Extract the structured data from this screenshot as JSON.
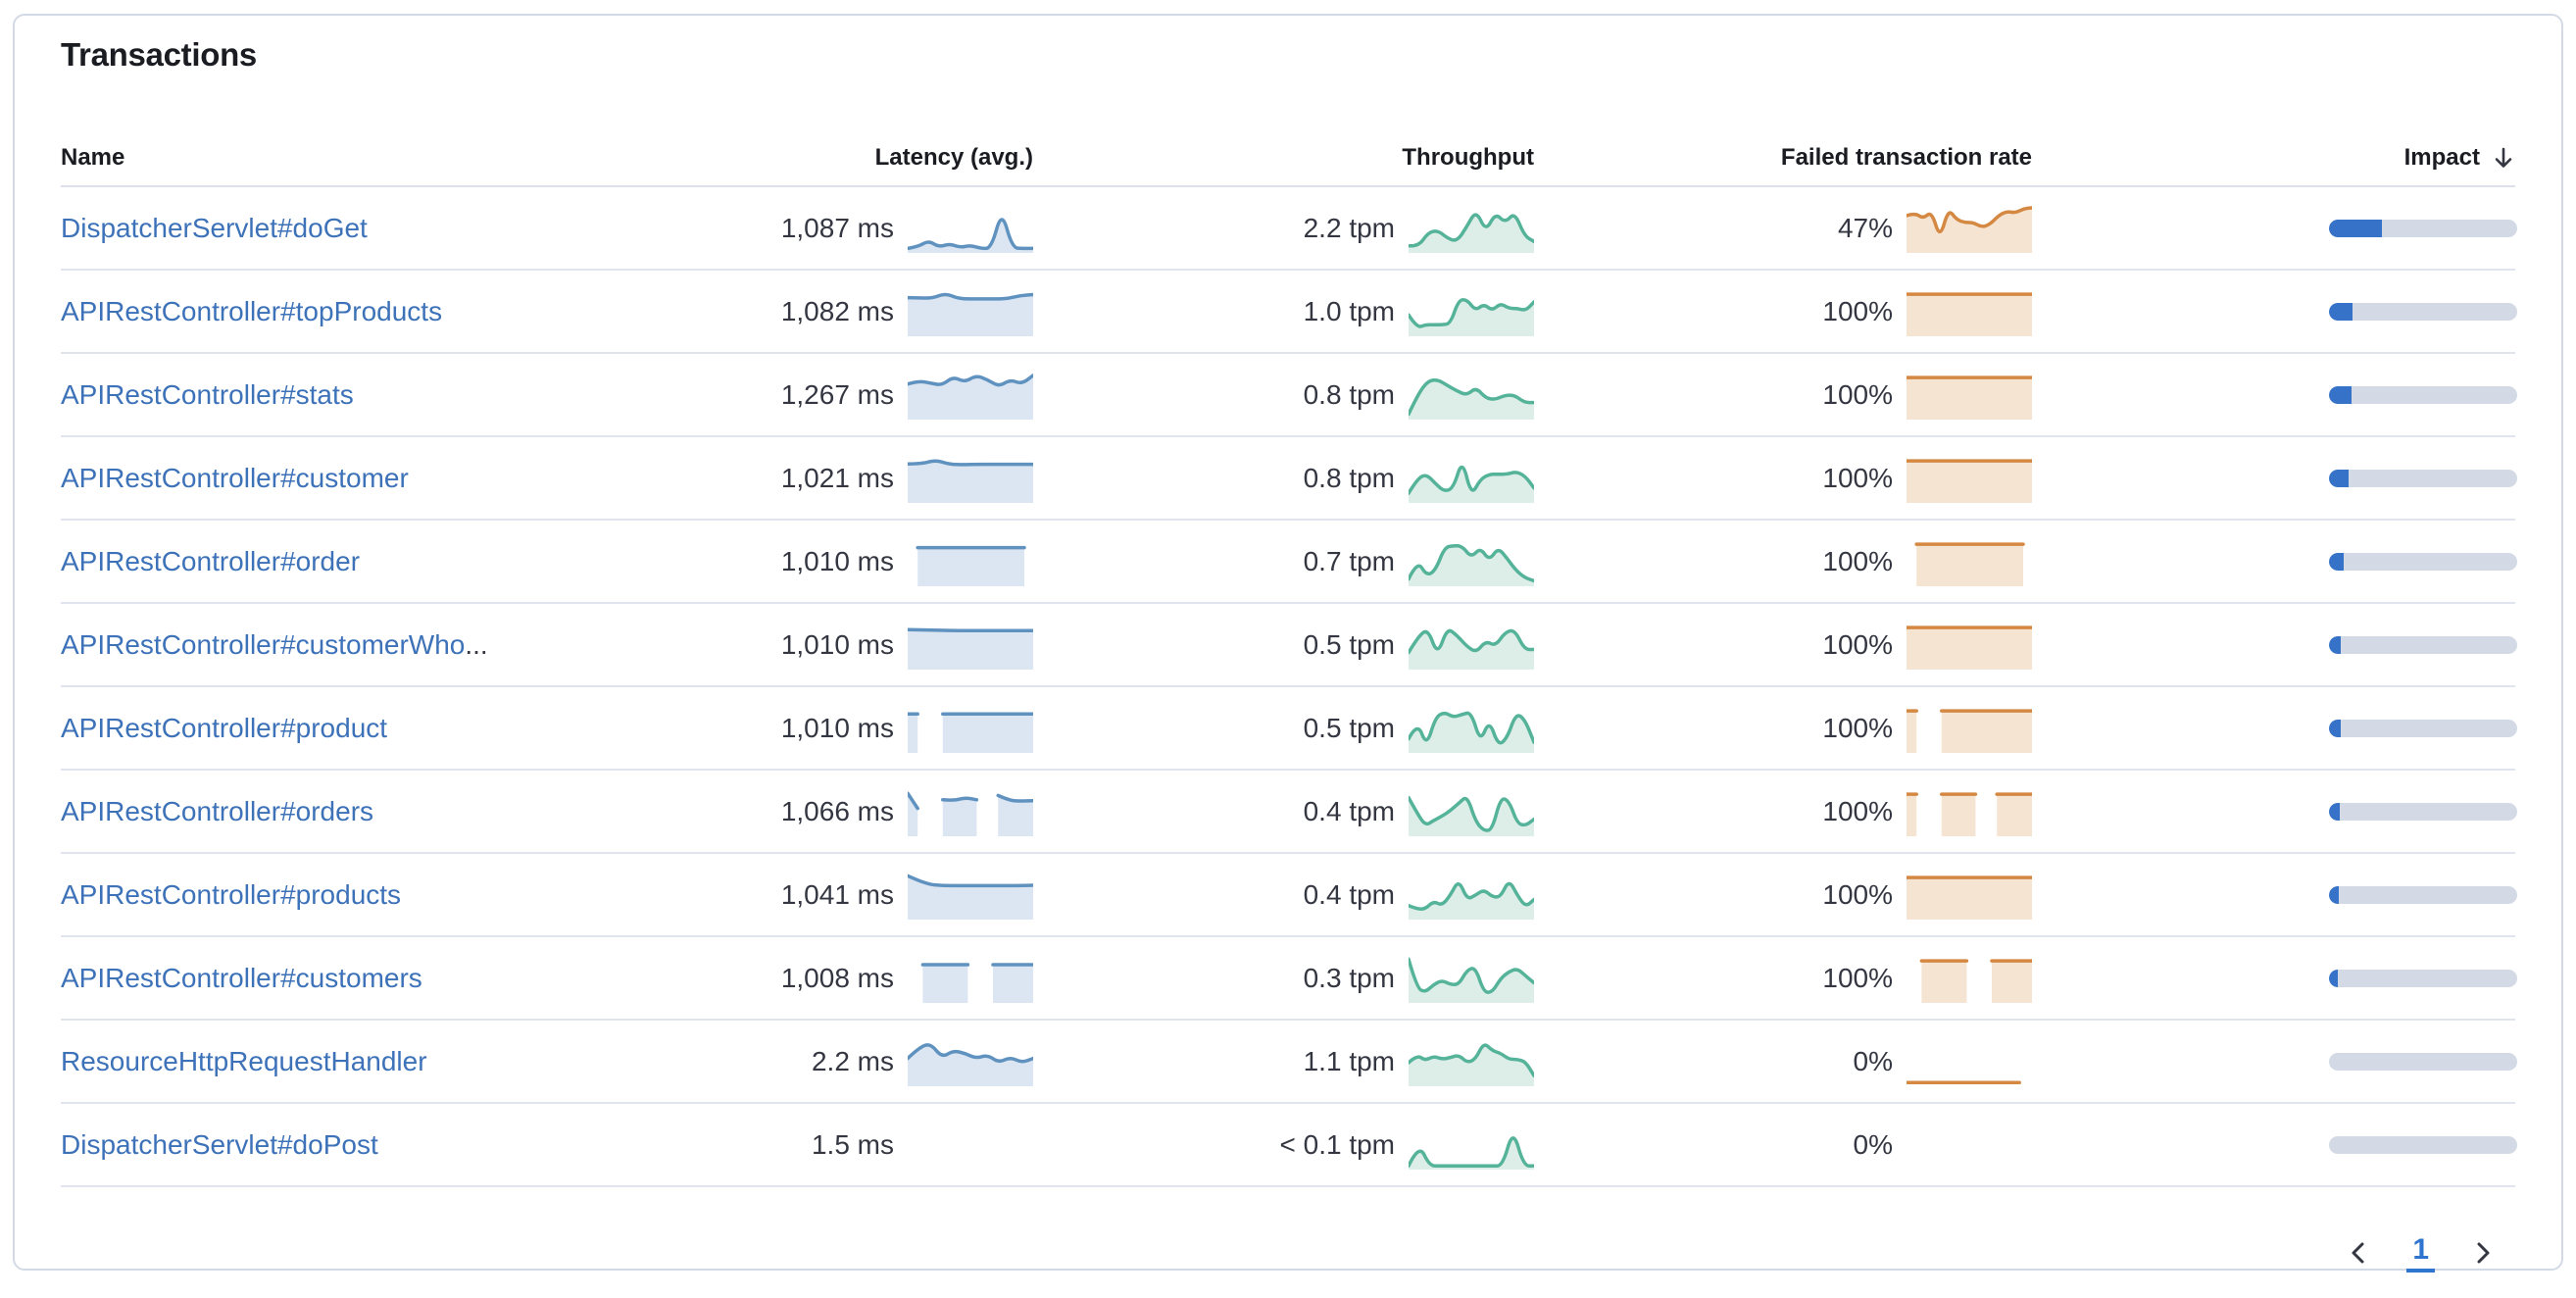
{
  "panel": {
    "title": "Transactions"
  },
  "table": {
    "columns": [
      {
        "key": "name",
        "label": "Name"
      },
      {
        "key": "latency",
        "label": "Latency (avg.)"
      },
      {
        "key": "throughput",
        "label": "Throughput"
      },
      {
        "key": "failed",
        "label": "Failed transaction rate"
      },
      {
        "key": "impact",
        "label": "Impact",
        "sorted": "desc"
      }
    ],
    "rows": [
      {
        "name": "DispatcherServlet#doGet",
        "suffix": "",
        "latency": "1,087 ms",
        "throughput": "2.2 tpm",
        "failed": "47%",
        "impact_pct": 28,
        "latency_spark": [
          {
            "x0": 0,
            "x1": 1,
            "v": [
              0.06,
              0.1,
              0.24,
              0.09,
              0.17,
              0.08,
              0.13,
              0.06,
              0.06,
              0.95,
              0.07,
              0.06,
              0.06
            ]
          }
        ],
        "throughput_spark": [
          {
            "x0": 0,
            "x1": 1,
            "v": [
              0.12,
              0.1,
              0.42,
              0.48,
              0.3,
              0.22,
              0.55,
              0.95,
              0.45,
              0.88,
              0.65,
              0.9,
              0.35,
              0.22
            ]
          }
        ],
        "failed_spark": [
          {
            "x0": 0,
            "x1": 1,
            "v": [
              0.82,
              0.88,
              0.75,
              0.92,
              0.28,
              0.98,
              0.72,
              0.66,
              0.66,
              0.55,
              0.62,
              0.82,
              0.92,
              0.88,
              0.98,
              1.0
            ]
          }
        ]
      },
      {
        "name": "APIRestController#topProducts",
        "suffix": "",
        "latency": "1,082 ms",
        "throughput": "1.0 tpm",
        "failed": "100%",
        "impact_pct": 12.5,
        "latency_spark": [
          {
            "x0": 0,
            "x1": 1,
            "v": [
              0.85,
              0.84,
              0.84,
              0.95,
              0.83,
              0.82,
              0.82,
              0.82,
              0.83,
              0.9,
              0.92
            ]
          }
        ],
        "throughput_spark": [
          {
            "x0": 0,
            "x1": 1,
            "v": [
              0.45,
              0.15,
              0.22,
              0.22,
              0.22,
              0.25,
              0.8,
              0.8,
              0.55,
              0.7,
              0.55,
              0.72,
              0.6,
              0.6,
              0.55,
              0.75
            ]
          }
        ],
        "failed_spark": [
          {
            "x0": 0,
            "x1": 1,
            "v": [
              0.93,
              0.93
            ]
          }
        ]
      },
      {
        "name": "APIRestController#stats",
        "suffix": "",
        "latency": "1,267 ms",
        "throughput": "0.8 tpm",
        "failed": "100%",
        "impact_pct": 12,
        "latency_spark": [
          {
            "x0": 0,
            "x1": 1,
            "v": [
              0.78,
              0.85,
              0.8,
              0.75,
              0.95,
              0.82,
              0.98,
              0.88,
              0.72,
              0.88,
              0.78,
              0.98
            ]
          }
        ],
        "throughput_spark": [
          {
            "x0": 0,
            "x1": 1,
            "v": [
              0.08,
              0.55,
              0.85,
              0.88,
              0.75,
              0.62,
              0.52,
              0.7,
              0.45,
              0.42,
              0.52,
              0.52,
              0.35,
              0.35
            ]
          }
        ],
        "failed_spark": [
          {
            "x0": 0,
            "x1": 1,
            "v": [
              0.93,
              0.93
            ]
          }
        ]
      },
      {
        "name": "APIRestController#customer",
        "suffix": "",
        "latency": "1,021 ms",
        "throughput": "0.8 tpm",
        "failed": "100%",
        "impact_pct": 10.5,
        "latency_spark": [
          {
            "x0": 0,
            "x1": 1,
            "v": [
              0.86,
              0.86,
              0.95,
              0.85,
              0.84,
              0.85,
              0.85,
              0.85,
              0.85,
              0.85
            ]
          }
        ],
        "throughput_spark": [
          {
            "x0": 0,
            "x1": 1,
            "v": [
              0.18,
              0.52,
              0.62,
              0.4,
              0.22,
              0.3,
              0.97,
              0.12,
              0.5,
              0.62,
              0.62,
              0.62,
              0.68,
              0.58,
              0.3
            ]
          }
        ],
        "failed_spark": [
          {
            "x0": 0,
            "x1": 1,
            "v": [
              0.93,
              0.93
            ]
          }
        ]
      },
      {
        "name": "APIRestController#order",
        "suffix": "",
        "latency": "1,010 ms",
        "throughput": "0.7 tpm",
        "failed": "100%",
        "impact_pct": 8,
        "latency_spark": [
          {
            "x0": 0.08,
            "x1": 0.93,
            "v": [
              0.85,
              0.85,
              0.85,
              0.85
            ]
          }
        ],
        "throughput_spark": [
          {
            "x0": 0,
            "x1": 1,
            "v": [
              0.12,
              0.55,
              0.2,
              0.32,
              0.85,
              0.9,
              0.88,
              0.62,
              0.85,
              0.55,
              0.85,
              0.6,
              0.32,
              0.15,
              0.08
            ]
          }
        ],
        "failed_spark": [
          {
            "x0": 0.08,
            "x1": 0.93,
            "v": [
              0.93,
              0.93
            ]
          }
        ]
      },
      {
        "name": "APIRestController#customerWho",
        "suffix": "...",
        "latency": "1,010 ms",
        "throughput": "0.5 tpm",
        "failed": "100%",
        "impact_pct": 6.5,
        "latency_spark": [
          {
            "x0": 0,
            "x1": 1,
            "v": [
              0.88,
              0.87,
              0.86,
              0.86,
              0.86,
              0.86,
              0.86
            ]
          }
        ],
        "throughput_spark": [
          {
            "x0": 0,
            "x1": 1,
            "v": [
              0.35,
              0.72,
              0.9,
              0.28,
              0.92,
              0.75,
              0.5,
              0.35,
              0.62,
              0.5,
              0.82,
              0.88,
              0.42,
              0.42
            ]
          }
        ],
        "failed_spark": [
          {
            "x0": 0,
            "x1": 1,
            "v": [
              0.93,
              0.93
            ]
          }
        ]
      },
      {
        "name": "APIRestController#product",
        "suffix": "",
        "latency": "1,010 ms",
        "throughput": "0.5 tpm",
        "failed": "100%",
        "impact_pct": 6,
        "latency_spark": [
          {
            "x0": 0,
            "x1": 0.08,
            "v": [
              0.86,
              0.86
            ]
          },
          {
            "x0": 0.28,
            "x1": 1,
            "v": [
              0.86,
              0.86,
              0.86
            ]
          }
        ],
        "throughput_spark": [
          {
            "x0": 0,
            "x1": 1,
            "v": [
              0.28,
              0.68,
              0.1,
              0.78,
              0.9,
              0.78,
              0.85,
              0.9,
              0.2,
              0.72,
              0.12,
              0.3,
              0.88,
              0.72,
              0.2
            ]
          }
        ],
        "failed_spark": [
          {
            "x0": 0,
            "x1": 0.08,
            "v": [
              0.93,
              0.93
            ]
          },
          {
            "x0": 0.28,
            "x1": 1,
            "v": [
              0.93,
              0.93
            ]
          }
        ]
      },
      {
        "name": "APIRestController#orders",
        "suffix": "",
        "latency": "1,066 ms",
        "throughput": "0.4 tpm",
        "failed": "100%",
        "impact_pct": 5.5,
        "latency_spark": [
          {
            "x0": 0,
            "x1": 0.08,
            "v": [
              0.95,
              0.6
            ]
          },
          {
            "x0": 0.28,
            "x1": 0.55,
            "v": [
              0.8,
              0.78,
              0.85,
              0.8
            ]
          },
          {
            "x0": 0.72,
            "x1": 1,
            "v": [
              0.9,
              0.78,
              0.77,
              0.78
            ]
          }
        ],
        "throughput_spark": [
          {
            "x0": 0,
            "x1": 1,
            "v": [
              0.85,
              0.5,
              0.2,
              0.32,
              0.42,
              0.55,
              0.72,
              0.9,
              0.3,
              0.08,
              0.1,
              0.85,
              0.78,
              0.25,
              0.2,
              0.35
            ]
          }
        ],
        "failed_spark": [
          {
            "x0": 0,
            "x1": 0.08,
            "v": [
              0.93,
              0.93
            ]
          },
          {
            "x0": 0.28,
            "x1": 0.55,
            "v": [
              0.93,
              0.93
            ]
          },
          {
            "x0": 0.72,
            "x1": 1,
            "v": [
              0.93,
              0.93
            ]
          }
        ]
      },
      {
        "name": "APIRestController#products",
        "suffix": "",
        "latency": "1,041 ms",
        "throughput": "0.4 tpm",
        "failed": "100%",
        "impact_pct": 5,
        "latency_spark": [
          {
            "x0": 0,
            "x1": 1,
            "v": [
              0.97,
              0.78,
              0.74,
              0.74,
              0.74,
              0.74,
              0.74,
              0.75
            ]
          }
        ],
        "throughput_spark": [
          {
            "x0": 0,
            "x1": 1,
            "v": [
              0.28,
              0.2,
              0.2,
              0.38,
              0.28,
              0.52,
              0.88,
              0.42,
              0.52,
              0.65,
              0.48,
              0.48,
              0.88,
              0.52,
              0.25,
              0.42
            ]
          }
        ],
        "failed_spark": [
          {
            "x0": 0,
            "x1": 1,
            "v": [
              0.93,
              0.93
            ]
          }
        ]
      },
      {
        "name": "APIRestController#customers",
        "suffix": "",
        "latency": "1,008 ms",
        "throughput": "0.3 tpm",
        "failed": "100%",
        "impact_pct": 4.5,
        "latency_spark": [
          {
            "x0": 0.12,
            "x1": 0.48,
            "v": [
              0.84,
              0.84,
              0.84
            ]
          },
          {
            "x0": 0.68,
            "x1": 1,
            "v": [
              0.84,
              0.84,
              0.84
            ]
          }
        ],
        "throughput_spark": [
          {
            "x0": 0,
            "x1": 1,
            "v": [
              0.97,
              0.3,
              0.2,
              0.38,
              0.48,
              0.38,
              0.38,
              0.72,
              0.78,
              0.2,
              0.2,
              0.52,
              0.68,
              0.75,
              0.58,
              0.42
            ]
          }
        ],
        "failed_spark": [
          {
            "x0": 0.12,
            "x1": 0.48,
            "v": [
              0.93,
              0.93
            ]
          },
          {
            "x0": 0.68,
            "x1": 1,
            "v": [
              0.93,
              0.93
            ]
          }
        ]
      },
      {
        "name": "ResourceHttpRequestHandler",
        "suffix": "",
        "latency": "2.2 ms",
        "throughput": "1.1 tpm",
        "failed": "0%",
        "impact_pct": 0,
        "latency_spark": [
          {
            "x0": 0,
            "x1": 1,
            "v": [
              0.6,
              0.85,
              0.95,
              0.62,
              0.78,
              0.72,
              0.6,
              0.68,
              0.5,
              0.63,
              0.5,
              0.6
            ]
          }
        ],
        "throughput_spark": [
          {
            "x0": 0,
            "x1": 1,
            "v": [
              0.5,
              0.68,
              0.55,
              0.65,
              0.58,
              0.62,
              0.68,
              0.5,
              0.58,
              0.97,
              0.78,
              0.72,
              0.58,
              0.58,
              0.52,
              0.2
            ]
          }
        ],
        "failed_spark": [
          {
            "x0": 0,
            "x1": 0.9,
            "v": [
              0.04,
              0.04
            ]
          }
        ]
      },
      {
        "name": "DispatcherServlet#doPost",
        "suffix": "",
        "latency": "1.5 ms",
        "throughput": "< 0.1 tpm",
        "failed": "0%",
        "impact_pct": 0,
        "latency_spark": null,
        "throughput_spark": [
          {
            "x0": 0,
            "x1": 1,
            "v": [
              0.04,
              0.55,
              0.04,
              0.04,
              0.04,
              0.04,
              0.04,
              0.04,
              0.04,
              0.04,
              0.9,
              0.04,
              0.04
            ]
          }
        ],
        "failed_spark": null
      }
    ]
  },
  "pagination": {
    "page": "1",
    "prev_icon": "chevron-left",
    "next_icon": "chevron-right"
  },
  "icons": {
    "sort_desc": "arrow-down"
  },
  "colors": {
    "latency_stroke": "#6092c0",
    "latency_fill": "#dce6f2",
    "throughput_stroke": "#54b399",
    "throughput_fill": "#ddeee8",
    "failed_stroke": "#d48842",
    "failed_fill": "#f5e4d1",
    "impact_fill": "#3572c8",
    "impact_track": "#d4dae5",
    "link": "#3d72b9",
    "heading": "#1a1c21",
    "text": "#343741"
  }
}
